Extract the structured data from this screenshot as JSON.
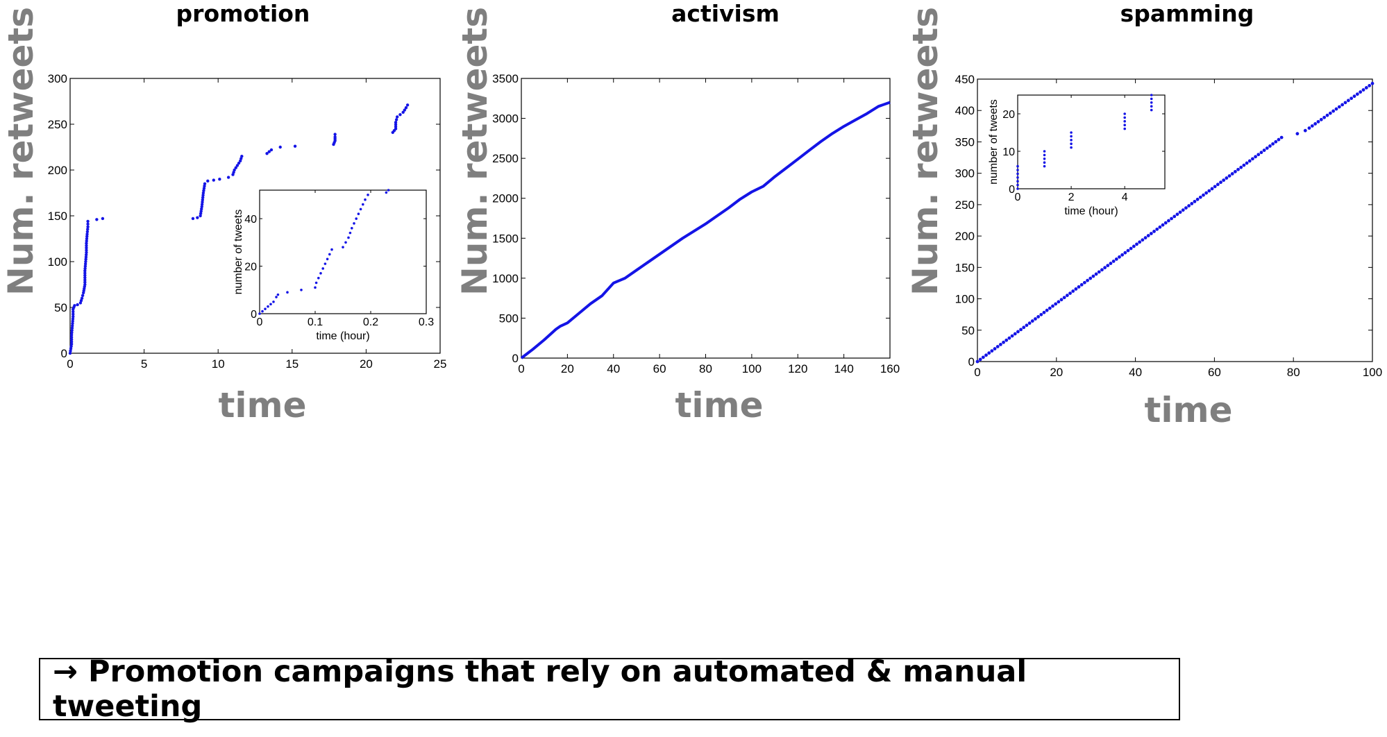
{
  "titles": [
    "promotion",
    "activism",
    "spamming"
  ],
  "ylabel": "Num. retweets",
  "xlabel": "time",
  "caption": "→ Promotion campaigns that rely on automated & manual tweeting",
  "marker_color": "#1414e6",
  "chart_data": [
    {
      "type": "scatter",
      "title": "promotion",
      "xlabel": "time",
      "ylabel": "Num. retweets",
      "xlim": [
        0,
        25
      ],
      "ylim": [
        0,
        300
      ],
      "xticks": [
        0,
        5,
        10,
        15,
        20,
        25
      ],
      "yticks": [
        0,
        50,
        100,
        150,
        200,
        250,
        300
      ],
      "grid": false,
      "series": [
        {
          "values": [
            [
              0,
              0
            ],
            [
              0.05,
              5
            ],
            [
              0.1,
              10
            ],
            [
              0.1,
              20
            ],
            [
              0.15,
              30
            ],
            [
              0.2,
              40
            ],
            [
              0.2,
              48
            ],
            [
              0.3,
              52
            ],
            [
              0.5,
              53
            ],
            [
              0.7,
              55
            ],
            [
              0.8,
              60
            ],
            [
              0.9,
              66
            ],
            [
              1.0,
              75
            ],
            [
              1.0,
              90
            ],
            [
              1.05,
              100
            ],
            [
              1.1,
              110
            ],
            [
              1.1,
              120
            ],
            [
              1.15,
              130
            ],
            [
              1.2,
              138
            ],
            [
              1.2,
              144
            ],
            [
              1.8,
              146
            ],
            [
              2.2,
              147
            ],
            [
              8.3,
              147
            ],
            [
              8.6,
              148
            ],
            [
              8.8,
              150
            ],
            [
              8.9,
              160
            ],
            [
              9.0,
              175
            ],
            [
              9.1,
              185
            ],
            [
              9.3,
              188
            ],
            [
              9.7,
              189
            ],
            [
              10.1,
              190
            ],
            [
              10.7,
              192
            ],
            [
              11.0,
              195
            ],
            [
              11.1,
              200
            ],
            [
              11.3,
              205
            ],
            [
              11.5,
              210
            ],
            [
              11.6,
              215
            ],
            [
              13.3,
              218
            ],
            [
              13.6,
              222
            ],
            [
              14.2,
              225
            ],
            [
              15.2,
              226
            ],
            [
              17.8,
              228
            ],
            [
              17.9,
              232
            ],
            [
              17.9,
              236
            ],
            [
              17.9,
              239
            ],
            [
              21.8,
              241
            ],
            [
              22.0,
              245
            ],
            [
              22.0,
              252
            ],
            [
              22.1,
              258
            ],
            [
              22.5,
              263
            ],
            [
              22.7,
              268
            ],
            [
              22.8,
              271
            ]
          ]
        }
      ],
      "inset": {
        "type": "scatter",
        "xlabel": "time (hour)",
        "ylabel": "number of tweets",
        "xlim": [
          0,
          0.3
        ],
        "ylim": [
          0,
          52
        ],
        "xticks": [
          0,
          0.1,
          0.2,
          0.3
        ],
        "xtick_labels": [
          "0",
          "0.1",
          "0.2",
          "0.3"
        ],
        "yticks": [
          0,
          20,
          40
        ],
        "values": [
          [
            0,
            0
          ],
          [
            0.005,
            1
          ],
          [
            0.01,
            2
          ],
          [
            0.015,
            3
          ],
          [
            0.02,
            4
          ],
          [
            0.025,
            5
          ],
          [
            0.03,
            7
          ],
          [
            0.033,
            8
          ],
          [
            0.05,
            9
          ],
          [
            0.075,
            10
          ],
          [
            0.1,
            11
          ],
          [
            0.102,
            13
          ],
          [
            0.106,
            15
          ],
          [
            0.11,
            17
          ],
          [
            0.114,
            19
          ],
          [
            0.118,
            21
          ],
          [
            0.122,
            23
          ],
          [
            0.126,
            25
          ],
          [
            0.13,
            27
          ],
          [
            0.15,
            28
          ],
          [
            0.155,
            30
          ],
          [
            0.16,
            32
          ],
          [
            0.163,
            34
          ],
          [
            0.166,
            36
          ],
          [
            0.17,
            38
          ],
          [
            0.174,
            40
          ],
          [
            0.178,
            42
          ],
          [
            0.182,
            44
          ],
          [
            0.186,
            46
          ],
          [
            0.19,
            48
          ],
          [
            0.195,
            50
          ],
          [
            0.228,
            51
          ],
          [
            0.232,
            52
          ]
        ]
      }
    },
    {
      "type": "line",
      "title": "activism",
      "xlabel": "time",
      "ylabel": "Num. retweets",
      "xlim": [
        0,
        160
      ],
      "ylim": [
        0,
        3500
      ],
      "xticks": [
        0,
        20,
        40,
        60,
        80,
        100,
        120,
        140,
        160
      ],
      "yticks": [
        0,
        500,
        1000,
        1500,
        2000,
        2500,
        3000,
        3500
      ],
      "ytick_labels": [
        "0",
        "500",
        "1000",
        "1500",
        "2000",
        "2500",
        "3000",
        "3500"
      ],
      "grid": false,
      "series": [
        {
          "values": [
            [
              0,
              0
            ],
            [
              5,
              110
            ],
            [
              10,
              230
            ],
            [
              15,
              360
            ],
            [
              17,
              400
            ],
            [
              20,
              440
            ],
            [
              25,
              560
            ],
            [
              30,
              680
            ],
            [
              35,
              780
            ],
            [
              40,
              940
            ],
            [
              45,
              1000
            ],
            [
              50,
              1100
            ],
            [
              55,
              1200
            ],
            [
              60,
              1300
            ],
            [
              65,
              1400
            ],
            [
              70,
              1500
            ],
            [
              75,
              1590
            ],
            [
              80,
              1680
            ],
            [
              85,
              1780
            ],
            [
              90,
              1880
            ],
            [
              95,
              1990
            ],
            [
              100,
              2080
            ],
            [
              105,
              2150
            ],
            [
              110,
              2270
            ],
            [
              115,
              2380
            ],
            [
              120,
              2490
            ],
            [
              125,
              2600
            ],
            [
              130,
              2710
            ],
            [
              135,
              2810
            ],
            [
              140,
              2900
            ],
            [
              145,
              2980
            ],
            [
              150,
              3060
            ],
            [
              155,
              3150
            ],
            [
              160,
              3200
            ]
          ]
        }
      ]
    },
    {
      "type": "scatter",
      "title": "spamming",
      "xlabel": "time",
      "ylabel": "Num. retweets",
      "xlim": [
        0,
        100
      ],
      "ylim": [
        0,
        450
      ],
      "xticks": [
        0,
        20,
        40,
        60,
        80,
        100
      ],
      "yticks": [
        0,
        50,
        100,
        150,
        200,
        250,
        300,
        350,
        400,
        450
      ],
      "grid": false,
      "series": [
        {
          "segments": [
            [
              [
                0,
                0
              ],
              [
                77,
                357
              ]
            ],
            [
              [
                81,
                363
              ],
              [
                83,
                368
              ]
            ],
            [
              [
                84,
                372
              ],
              [
                100,
                443
              ]
            ]
          ]
        }
      ],
      "inset": {
        "type": "scatter",
        "xlabel": "time (hour)",
        "ylabel": "number of tweets",
        "xlim": [
          0,
          5.5
        ],
        "ylim": [
          0,
          25
        ],
        "xticks": [
          0,
          2,
          4
        ],
        "yticks": [
          0,
          10,
          20
        ],
        "values": [
          [
            0,
            0
          ],
          [
            0,
            1
          ],
          [
            0,
            2
          ],
          [
            0,
            3
          ],
          [
            0,
            4
          ],
          [
            0,
            5
          ],
          [
            0,
            6
          ],
          [
            1,
            6
          ],
          [
            1,
            7
          ],
          [
            1,
            8
          ],
          [
            1,
            9
          ],
          [
            1,
            10
          ],
          [
            2,
            11
          ],
          [
            2,
            12
          ],
          [
            2,
            13
          ],
          [
            2,
            14
          ],
          [
            2,
            15
          ],
          [
            4,
            16
          ],
          [
            4,
            17
          ],
          [
            4,
            18
          ],
          [
            4,
            19
          ],
          [
            4,
            20
          ],
          [
            5,
            21
          ],
          [
            5,
            22
          ],
          [
            5,
            23
          ],
          [
            5,
            24
          ],
          [
            5,
            25
          ]
        ]
      }
    }
  ]
}
